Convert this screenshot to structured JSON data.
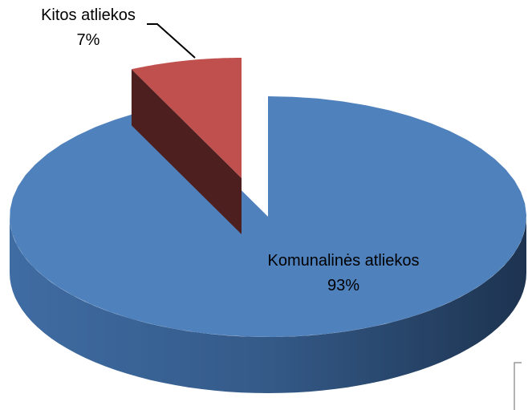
{
  "chart_data": {
    "type": "pie3d",
    "categories": [
      "Komunalinės atliekos",
      "Kitos atliekos"
    ],
    "values": [
      93,
      7
    ],
    "value_labels": [
      "93%",
      "7%"
    ],
    "colors": [
      "#4f81bd",
      "#c0504d"
    ],
    "exploded": [
      false,
      true
    ]
  }
}
